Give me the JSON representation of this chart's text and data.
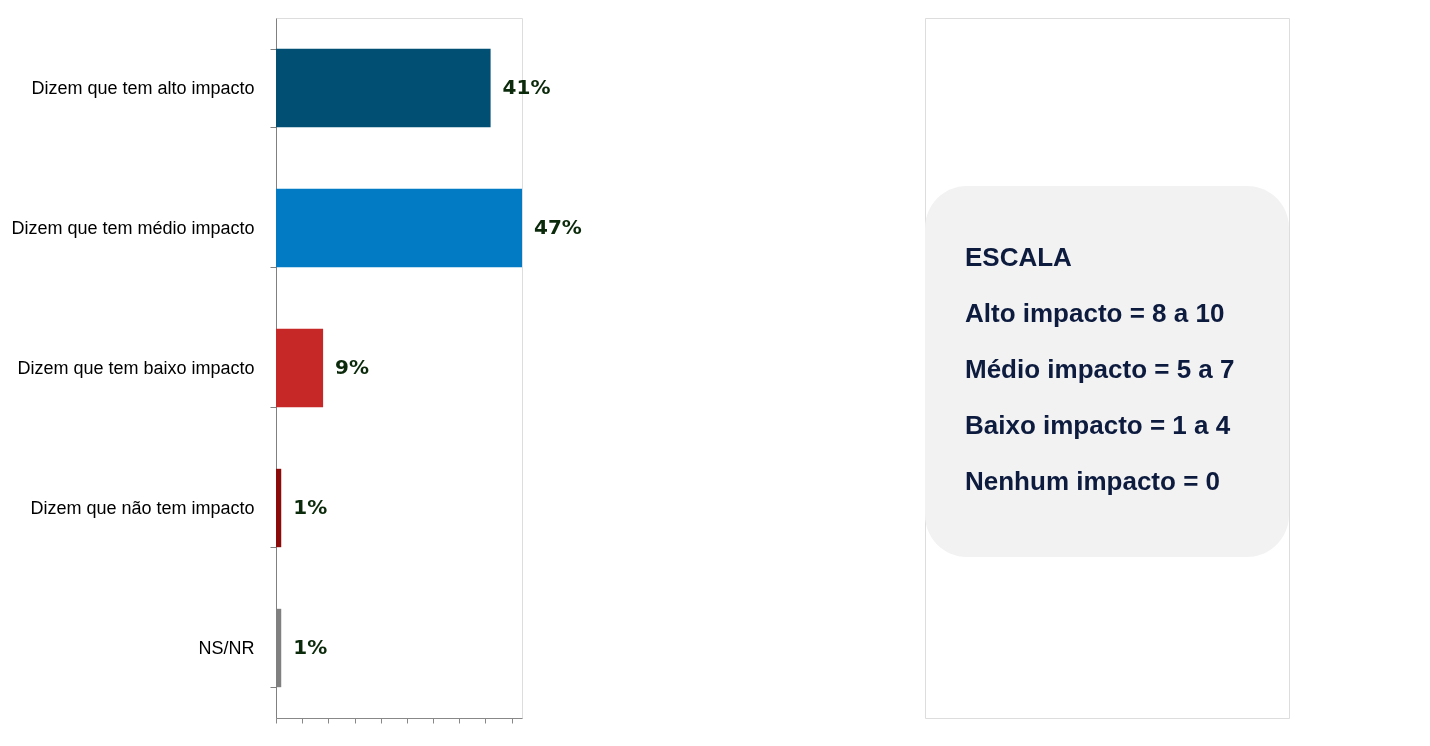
{
  "chart_data": {
    "type": "bar",
    "orientation": "horizontal",
    "relative": false,
    "categories": [
      "Dizem que tem alto impacto",
      "Dizem que tem médio impacto",
      "Dizem que tem baixo impacto",
      "Dizem que não tem impacto",
      "NS/NR"
    ],
    "values": [
      41,
      47,
      9,
      1,
      1
    ],
    "colors": [
      "#024f74",
      "#027bc4",
      "#c62828",
      "#8b0a0a",
      "#808080"
    ],
    "value_labels": [
      "41%",
      "47%",
      "9%",
      "1%",
      "1%"
    ],
    "annotations": [
      "ESCALA",
      "Alto impacto = 8 a 10",
      "Médio impacto = 5 a 7",
      "Baixo impacto = 1 a 4",
      "Nenhum impacto = 0"
    ],
    "tick_labels": "y",
    "grid": false,
    "legend": false
  }
}
